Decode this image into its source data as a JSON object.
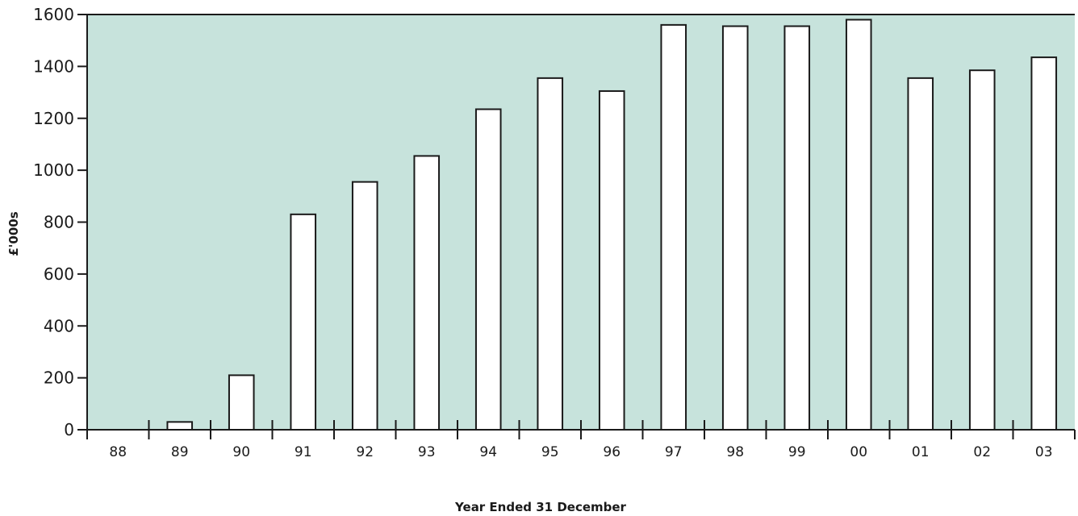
{
  "colors": {
    "plot_background": "#c7e3dc",
    "bar_fill": "#ffffff",
    "bar_stroke": "#1a1a1a",
    "axis": "#1a1a1a"
  },
  "chart_data": {
    "type": "bar",
    "title": "",
    "xlabel": "Year Ended 31 December",
    "ylabel": "£'000s",
    "categories": [
      "88",
      "89",
      "90",
      "91",
      "92",
      "93",
      "94",
      "95",
      "96",
      "97",
      "98",
      "99",
      "00",
      "01",
      "02",
      "03"
    ],
    "values": [
      0,
      30,
      210,
      830,
      955,
      1055,
      1235,
      1355,
      1305,
      1560,
      1555,
      1555,
      1580,
      1355,
      1385,
      1435
    ],
    "ylim": [
      0,
      1600
    ],
    "yticks": [
      0,
      200,
      400,
      600,
      800,
      1000,
      1200,
      1400,
      1600
    ],
    "grid": false,
    "legend": "none"
  }
}
